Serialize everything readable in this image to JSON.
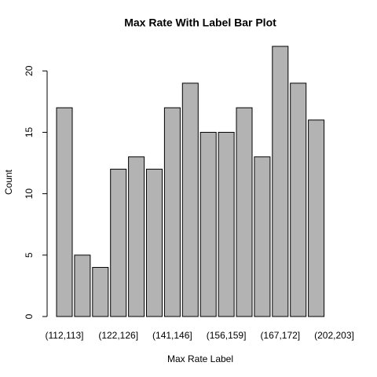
{
  "chart_data": {
    "type": "bar",
    "title": "Max Rate With Label Bar Plot",
    "x_label": "Max Rate Label",
    "y_label": "Count",
    "categories": [
      "(112,113]",
      null,
      null,
      "(122,126]",
      null,
      null,
      "(141,146]",
      null,
      null,
      "(156,159]",
      null,
      null,
      "(167,172]",
      null,
      null,
      "(202,203]"
    ],
    "values": [
      17,
      5,
      4,
      12,
      13,
      12,
      17,
      19,
      15,
      15,
      17,
      13,
      22,
      19,
      16,
      0
    ],
    "color": "#b3b3b3",
    "ylim": [
      0,
      22
    ],
    "yticks": [
      0,
      5,
      10,
      15,
      20
    ],
    "grid": false
  }
}
